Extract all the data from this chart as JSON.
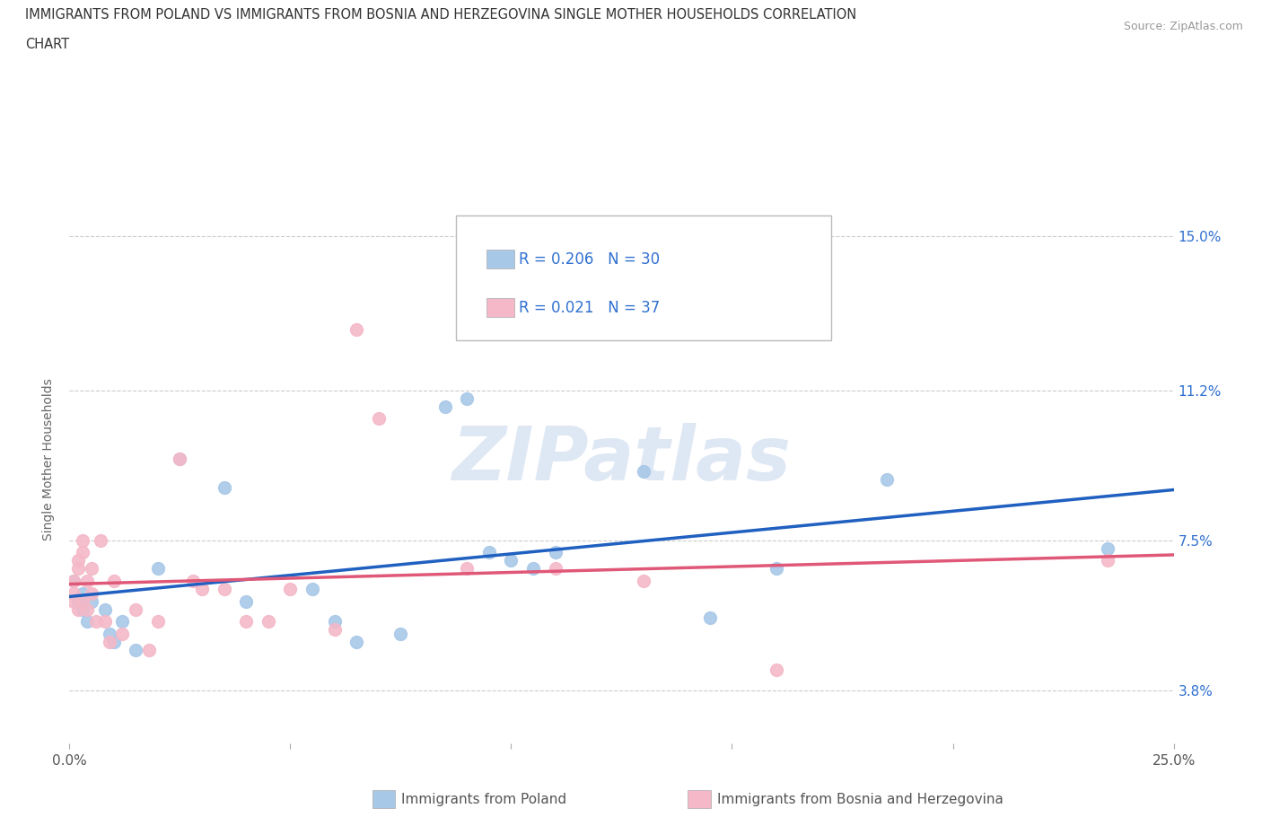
{
  "title_line1": "IMMIGRANTS FROM POLAND VS IMMIGRANTS FROM BOSNIA AND HERZEGOVINA SINGLE MOTHER HOUSEHOLDS CORRELATION",
  "title_line2": "CHART",
  "source": "Source: ZipAtlas.com",
  "ylabel": "Single Mother Households",
  "xlim": [
    0.0,
    0.25
  ],
  "ylim": [
    0.025,
    0.165
  ],
  "xtick_positions": [
    0.0,
    0.05,
    0.1,
    0.15,
    0.2,
    0.25
  ],
  "xtick_labels": [
    "0.0%",
    "",
    "",
    "",
    "",
    "25.0%"
  ],
  "ytick_labels_right": [
    "3.8%",
    "7.5%",
    "11.2%",
    "15.0%"
  ],
  "ytick_vals_right": [
    0.038,
    0.075,
    0.112,
    0.15
  ],
  "R_poland": 0.206,
  "N_poland": 30,
  "R_bosnia": 0.021,
  "N_bosnia": 37,
  "color_poland": "#a8c8e8",
  "color_bosnia": "#f4b8c8",
  "line_color_poland": "#2060c0",
  "line_color_bosnia": "#e05878",
  "legend_text_color": "#3070d0",
  "background_color": "#ffffff",
  "watermark": "ZIPatlas",
  "poland_x": [
    0.001,
    0.002,
    0.003,
    0.003,
    0.004,
    0.005,
    0.008,
    0.009,
    0.01,
    0.012,
    0.015,
    0.02,
    0.025,
    0.035,
    0.04,
    0.055,
    0.06,
    0.065,
    0.075,
    0.085,
    0.09,
    0.095,
    0.1,
    0.105,
    0.11,
    0.13,
    0.145,
    0.16,
    0.185,
    0.235
  ],
  "poland_y": [
    0.065,
    0.06,
    0.058,
    0.062,
    0.055,
    0.06,
    0.058,
    0.052,
    0.05,
    0.055,
    0.048,
    0.068,
    0.095,
    0.088,
    0.06,
    0.063,
    0.055,
    0.05,
    0.052,
    0.108,
    0.11,
    0.072,
    0.07,
    0.068,
    0.072,
    0.092,
    0.056,
    0.068,
    0.09,
    0.073
  ],
  "bosnia_x": [
    0.001,
    0.001,
    0.001,
    0.002,
    0.002,
    0.002,
    0.003,
    0.003,
    0.003,
    0.004,
    0.004,
    0.005,
    0.005,
    0.006,
    0.007,
    0.008,
    0.009,
    0.01,
    0.012,
    0.015,
    0.018,
    0.02,
    0.025,
    0.028,
    0.03,
    0.035,
    0.04,
    0.045,
    0.05,
    0.06,
    0.065,
    0.07,
    0.09,
    0.11,
    0.13,
    0.16,
    0.235
  ],
  "bosnia_y": [
    0.06,
    0.065,
    0.062,
    0.07,
    0.068,
    0.058,
    0.075,
    0.072,
    0.06,
    0.065,
    0.058,
    0.062,
    0.068,
    0.055,
    0.075,
    0.055,
    0.05,
    0.065,
    0.052,
    0.058,
    0.048,
    0.055,
    0.095,
    0.065,
    0.063,
    0.063,
    0.055,
    0.055,
    0.063,
    0.053,
    0.127,
    0.105,
    0.068,
    0.068,
    0.065,
    0.043,
    0.07
  ],
  "bottom_legend_label1": "Immigrants from Poland",
  "bottom_legend_label2": "Immigrants from Bosnia and Herzegovina"
}
